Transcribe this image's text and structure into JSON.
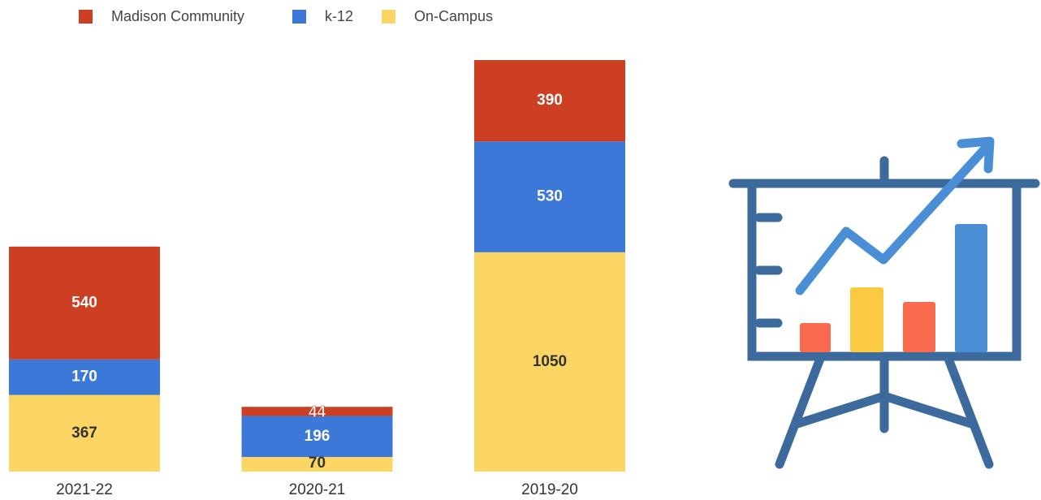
{
  "chart_data": {
    "type": "stacked_bar",
    "categories": [
      "2021-22",
      "2020-21",
      "2019-20"
    ],
    "series": [
      {
        "name": "Madison Community",
        "color": "#cc3f22",
        "values": [
          540,
          44,
          390
        ]
      },
      {
        "name": "k-12",
        "color": "#3b78d8",
        "values": [
          170,
          196,
          530
        ]
      },
      {
        "name": "On-Campus",
        "color": "#fcd664",
        "values": [
          367,
          70,
          1050
        ]
      }
    ],
    "legend": "top"
  }
}
